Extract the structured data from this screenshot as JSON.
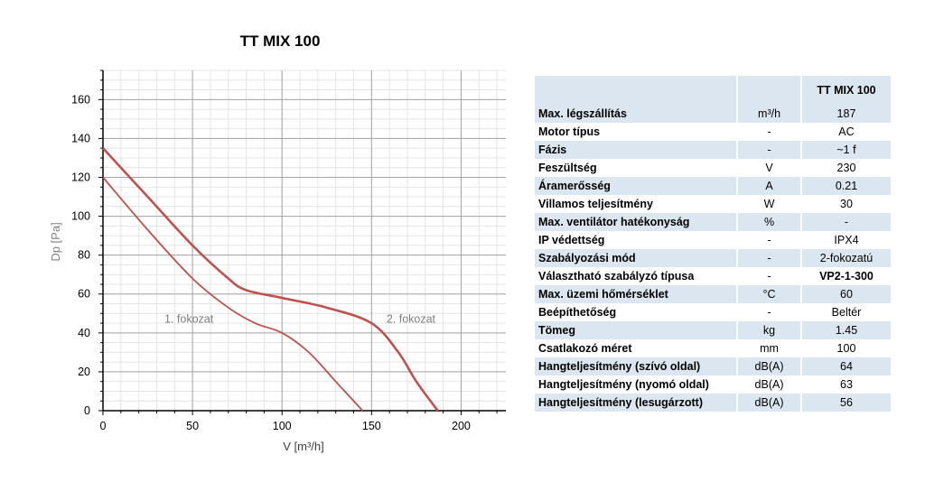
{
  "chart_data": {
    "type": "line",
    "title": "TT MIX 100",
    "xlabel": "V [m³/h]",
    "ylabel": "Dp [Pa]",
    "xlim": [
      0,
      225
    ],
    "ylim": [
      0,
      175
    ],
    "xticks": [
      0,
      50,
      100,
      150,
      200
    ],
    "yticks": [
      0,
      20,
      40,
      60,
      80,
      100,
      120,
      140,
      160
    ],
    "grid": true,
    "series": [
      {
        "name": "1. fokozat",
        "color": "#c0504d",
        "x": [
          0,
          25,
          50,
          70,
          85,
          100,
          115,
          130,
          145
        ],
        "y": [
          120,
          93,
          68,
          53,
          45,
          40,
          30,
          15,
          0
        ]
      },
      {
        "name": "2. fokozat",
        "color": "#c0504d",
        "x": [
          0,
          25,
          50,
          70,
          80,
          100,
          125,
          150,
          165,
          175,
          187
        ],
        "y": [
          135,
          110,
          85,
          68,
          62,
          58,
          53,
          45,
          30,
          15,
          0
        ]
      }
    ],
    "annotations": [
      {
        "text": "1. fokozat",
        "x": 48,
        "y": 47
      },
      {
        "text": "2. fokozat",
        "x": 172,
        "y": 47
      }
    ]
  },
  "table": {
    "header": [
      "",
      "",
      "TT MIX 100"
    ],
    "rows": [
      {
        "param": "Max. légszállítás",
        "unit": "m³/h",
        "value": "187"
      },
      {
        "param": "Motor típus",
        "unit": "-",
        "value": "AC"
      },
      {
        "param": "Fázis",
        "unit": "-",
        "value": "~1 f"
      },
      {
        "param": "Feszültség",
        "unit": "V",
        "value": "230"
      },
      {
        "param": "Áramerősség",
        "unit": "A",
        "value": "0.21"
      },
      {
        "param": "Villamos teljesítmény",
        "unit": "W",
        "value": "30"
      },
      {
        "param": "Max. ventilátor hatékonyság",
        "unit": "%",
        "value": "-"
      },
      {
        "param": "IP védettség",
        "unit": "-",
        "value": "IPX4"
      },
      {
        "param": "Szabályozási mód",
        "unit": "-",
        "value": "2-fokozatú"
      },
      {
        "param": "Választható szabályzó típusa",
        "unit": "-",
        "value": "VP2-1-300",
        "bold": true
      },
      {
        "param": "Max. üzemi hőmérséklet",
        "unit": "°C",
        "value": "60"
      },
      {
        "param": "Beépíthetőség",
        "unit": "-",
        "value": "Beltér"
      },
      {
        "param": "Tömeg",
        "unit": "kg",
        "value": "1.45"
      },
      {
        "param": "Csatlakozó méret",
        "unit": "mm",
        "value": "100"
      },
      {
        "param": "Hangteljesítmény (szívó oldal)",
        "unit": "dB(A)",
        "value": "64"
      },
      {
        "param": "Hangteljesítmény (nyomó oldal)",
        "unit": "dB(A)",
        "value": "63"
      },
      {
        "param": "Hangteljesítmény (lesugárzott)",
        "unit": "dB(A)",
        "value": "56"
      }
    ]
  }
}
